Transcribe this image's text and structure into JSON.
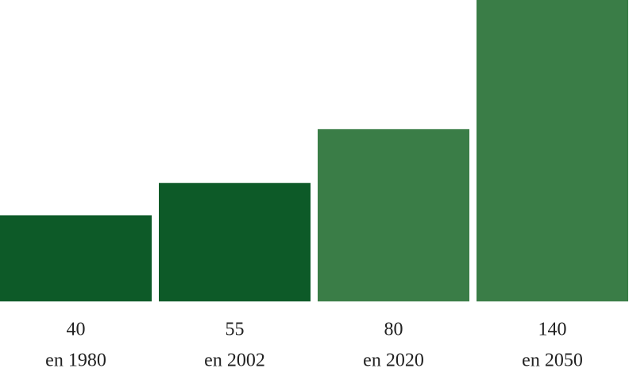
{
  "chart_data": {
    "type": "bar",
    "categories": [
      "en 1980",
      "en 2002",
      "en 2020",
      "en 2050"
    ],
    "values": [
      40,
      55,
      80,
      140
    ],
    "colors": [
      "#0d5a28",
      "#0d5a28",
      "#3a7d47",
      "#3a7d47"
    ],
    "ylim": [
      0,
      140
    ]
  }
}
